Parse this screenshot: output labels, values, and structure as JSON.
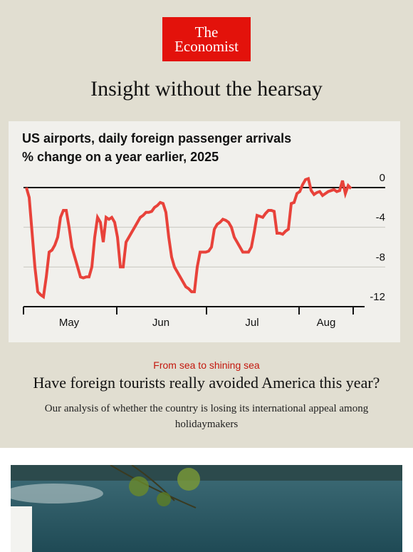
{
  "header": {
    "logo_line1": "The",
    "logo_line2": "Economist",
    "tagline": "Insight without the hearsay"
  },
  "chart_data": {
    "type": "line",
    "title": "US airports, daily foreign passenger arrivals",
    "subtitle": "% change on a year earlier, 2025",
    "x_labels": [
      "May",
      "Jun",
      "Jul",
      "Aug"
    ],
    "ylim": [
      -12,
      0
    ],
    "yticks": [
      0,
      -4,
      -8,
      -12
    ],
    "grid": true,
    "series": [
      {
        "name": "Foreign passenger arrivals",
        "color": "#e8423a",
        "values": [
          0,
          -1,
          -4.5,
          -8,
          -10.5,
          -10.8,
          -11,
          -9,
          -6.5,
          -6.3,
          -5.8,
          -5,
          -3,
          -2.3,
          -2.3,
          -4,
          -6,
          -7,
          -8,
          -9,
          -9.1,
          -9,
          -9,
          -8,
          -5,
          -3,
          -3.5,
          -5.5,
          -3,
          -3.2,
          -3,
          -3.5,
          -5,
          -8,
          -8,
          -5.5,
          -5,
          -4.5,
          -4,
          -3.5,
          -3,
          -2.8,
          -2.5,
          -2.5,
          -2.4,
          -2,
          -1.8,
          -1.5,
          -1.6,
          -2.5,
          -5,
          -7,
          -8,
          -8.5,
          -9,
          -9.5,
          -10,
          -10.2,
          -10.5,
          -10.5,
          -8,
          -6.5,
          -6.5,
          -6.5,
          -6.4,
          -6,
          -4.2,
          -3.7,
          -3.5,
          -3.2,
          -3.3,
          -3.5,
          -4,
          -5,
          -5.5,
          -6,
          -6.5,
          -6.5,
          -6.5,
          -6,
          -4.5,
          -2.8,
          -2.9,
          -3,
          -2.6,
          -2.3,
          -2.3,
          -2.4,
          -4.6,
          -4.6,
          -4.7,
          -4.4,
          -4.2,
          -1.6,
          -1.5,
          -0.6,
          -0.4,
          0.3,
          0.8,
          0.9,
          -0.3,
          -0.7,
          -0.5,
          -0.4,
          -0.8,
          -0.6,
          -0.4,
          -0.3,
          -0.2,
          -0.4,
          -0.3,
          0.7,
          -0.6,
          0.2,
          -0.1
        ]
      }
    ]
  },
  "article": {
    "kicker": "From sea to shining sea",
    "headline": "Have foreign tourists really avoided America this year?",
    "standfirst": "Our analysis of whether the country is losing its international appeal among holidaymakers"
  }
}
